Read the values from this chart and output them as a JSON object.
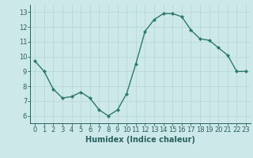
{
  "x": [
    0,
    1,
    2,
    3,
    4,
    5,
    6,
    7,
    8,
    9,
    10,
    11,
    12,
    13,
    14,
    15,
    16,
    17,
    18,
    19,
    20,
    21,
    22,
    23
  ],
  "y": [
    9.7,
    9.0,
    7.8,
    7.2,
    7.3,
    7.6,
    7.2,
    6.4,
    6.0,
    6.4,
    7.5,
    9.5,
    11.7,
    12.5,
    12.9,
    12.9,
    12.7,
    11.8,
    11.2,
    11.1,
    10.6,
    10.1,
    9.0,
    9.0
  ],
  "line_color": "#2a7a6a",
  "marker_color": "#2a7a6a",
  "bg_color": "#cce8e8",
  "grid_color": "#b8d8d8",
  "xlabel": "Humidex (Indice chaleur)",
  "xlim": [
    -0.5,
    23.5
  ],
  "ylim": [
    5.5,
    13.5
  ],
  "yticks": [
    6,
    7,
    8,
    9,
    10,
    11,
    12,
    13
  ],
  "xticks": [
    0,
    1,
    2,
    3,
    4,
    5,
    6,
    7,
    8,
    9,
    10,
    11,
    12,
    13,
    14,
    15,
    16,
    17,
    18,
    19,
    20,
    21,
    22,
    23
  ],
  "tick_color": "#2a6060",
  "label_fontsize": 7.0,
  "tick_fontsize": 6.0,
  "linewidth": 1.0,
  "markersize": 2.2
}
